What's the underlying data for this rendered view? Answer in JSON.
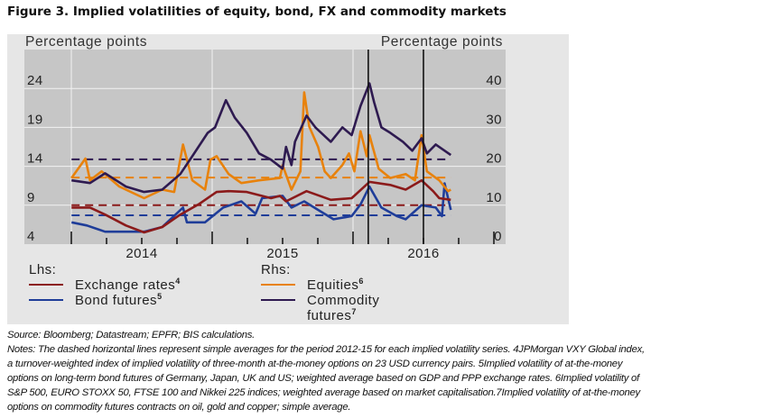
{
  "title": "Figure 3. Implied volatilities of equity, bond, FX and commodity markets",
  "chart_data": {
    "type": "line",
    "lhs_label": "Percentage points",
    "rhs_label": "Percentage points",
    "lhs_ticks": [
      24,
      19,
      14,
      9,
      4
    ],
    "rhs_ticks": [
      40,
      30,
      20,
      10,
      0
    ],
    "lhs_range": [
      4,
      29
    ],
    "rhs_range": [
      0,
      50
    ],
    "x_tick_labels": [
      "2014",
      "2015",
      "2016"
    ],
    "x_range": [
      "2013-07-01",
      "2016-05-15"
    ],
    "grid": true,
    "event_lines": [
      "2015-08-11",
      "2016-01-01"
    ],
    "legend": {
      "lhs_title": "Lhs:",
      "rhs_title": "Rhs:",
      "placement": "bottom"
    },
    "series": [
      {
        "name": "Exchange rates",
        "note": "4",
        "axis": "lhs",
        "color": "#8b1a1a",
        "average": 9.0,
        "points": [
          [
            "2013-07-03",
            8.7
          ],
          [
            "2013-08-20",
            8.7
          ],
          [
            "2013-09-28",
            7.8
          ],
          [
            "2013-11-21",
            6.4
          ],
          [
            "2014-01-07",
            5.5
          ],
          [
            "2014-02-23",
            6.2
          ],
          [
            "2014-04-11",
            7.8
          ],
          [
            "2014-05-28",
            9.1
          ],
          [
            "2014-07-14",
            10.7
          ],
          [
            "2014-08-14",
            10.8
          ],
          [
            "2014-09-30",
            10.7
          ],
          [
            "2014-12-02",
            9.9
          ],
          [
            "2014-12-25",
            10.2
          ],
          [
            "2015-01-10",
            9.5
          ],
          [
            "2015-03-04",
            10.8
          ],
          [
            "2015-05-06",
            9.7
          ],
          [
            "2015-06-29",
            9.9
          ],
          [
            "2015-08-14",
            12.0
          ],
          [
            "2015-10-07",
            11.6
          ],
          [
            "2015-11-16",
            11.0
          ],
          [
            "2015-12-27",
            12.2
          ],
          [
            "2016-01-26",
            10.8
          ],
          [
            "2016-02-11",
            9.9
          ],
          [
            "2016-03-12",
            9.7
          ]
        ]
      },
      {
        "name": "Bond futures",
        "note": "5",
        "axis": "lhs",
        "color": "#1f3d99",
        "average": 7.7,
        "points": [
          [
            "2013-07-03",
            6.8
          ],
          [
            "2013-08-12",
            6.4
          ],
          [
            "2013-09-28",
            5.6
          ],
          [
            "2013-11-21",
            5.6
          ],
          [
            "2014-01-07",
            5.6
          ],
          [
            "2014-02-23",
            6.2
          ],
          [
            "2014-04-18",
            8.7
          ],
          [
            "2014-04-28",
            6.8
          ],
          [
            "2014-06-14",
            6.8
          ],
          [
            "2014-07-31",
            8.7
          ],
          [
            "2014-09-16",
            9.5
          ],
          [
            "2014-10-23",
            7.9
          ],
          [
            "2014-11-09",
            9.9
          ],
          [
            "2015-01-01",
            10.2
          ],
          [
            "2015-01-24",
            8.7
          ],
          [
            "2015-02-26",
            9.5
          ],
          [
            "2015-04-03",
            8.4
          ],
          [
            "2015-05-13",
            7.2
          ],
          [
            "2015-06-29",
            7.6
          ],
          [
            "2015-07-22",
            9.1
          ],
          [
            "2015-08-14",
            11.4
          ],
          [
            "2015-09-14",
            8.7
          ],
          [
            "2015-10-24",
            7.6
          ],
          [
            "2015-11-16",
            7.2
          ],
          [
            "2015-12-27",
            9.0
          ],
          [
            "2016-02-02",
            8.7
          ],
          [
            "2016-02-18",
            7.6
          ],
          [
            "2016-02-25",
            11.8
          ],
          [
            "2016-03-12",
            8.4
          ]
        ]
      },
      {
        "name": "Equities",
        "note": "6",
        "axis": "rhs",
        "color": "#e8820c",
        "average": 17.1,
        "points": [
          [
            "2013-07-03",
            17.0
          ],
          [
            "2013-08-08",
            22.0
          ],
          [
            "2013-08-20",
            16.4
          ],
          [
            "2013-09-19",
            18.7
          ],
          [
            "2013-11-04",
            14.8
          ],
          [
            "2014-01-07",
            11.8
          ],
          [
            "2014-02-23",
            14.0
          ],
          [
            "2014-03-26",
            13.4
          ],
          [
            "2014-04-18",
            25.6
          ],
          [
            "2014-05-12",
            16.4
          ],
          [
            "2014-06-14",
            14.0
          ],
          [
            "2014-06-28",
            21.7
          ],
          [
            "2014-07-14",
            22.6
          ],
          [
            "2014-08-14",
            18.0
          ],
          [
            "2014-09-16",
            15.7
          ],
          [
            "2014-11-01",
            16.4
          ],
          [
            "2014-12-25",
            17.0
          ],
          [
            "2015-01-01",
            20.3
          ],
          [
            "2015-01-24",
            14.0
          ],
          [
            "2015-02-16",
            18.7
          ],
          [
            "2015-02-26",
            39.0
          ],
          [
            "2015-03-11",
            30.2
          ],
          [
            "2015-04-03",
            25.0
          ],
          [
            "2015-04-20",
            18.7
          ],
          [
            "2015-05-06",
            17.0
          ],
          [
            "2015-06-05",
            20.3
          ],
          [
            "2015-06-22",
            23.3
          ],
          [
            "2015-07-06",
            18.7
          ],
          [
            "2015-07-22",
            29.0
          ],
          [
            "2015-08-07",
            22.6
          ],
          [
            "2015-08-14",
            28.0
          ],
          [
            "2015-09-07",
            19.4
          ],
          [
            "2015-10-07",
            17.0
          ],
          [
            "2015-11-16",
            18.0
          ],
          [
            "2015-12-10",
            16.4
          ],
          [
            "2015-12-27",
            28.0
          ],
          [
            "2016-01-10",
            18.7
          ],
          [
            "2016-02-11",
            16.4
          ],
          [
            "2016-03-05",
            13.6
          ],
          [
            "2016-03-12",
            14.0
          ]
        ]
      },
      {
        "name": "Commodity futures",
        "note": "7",
        "axis": "rhs",
        "color": "#2e1a50",
        "average": 21.8,
        "points": [
          [
            "2013-07-03",
            16.4
          ],
          [
            "2013-08-20",
            15.7
          ],
          [
            "2013-09-28",
            18.2
          ],
          [
            "2013-11-21",
            14.8
          ],
          [
            "2014-01-07",
            13.4
          ],
          [
            "2014-02-23",
            14.0
          ],
          [
            "2014-04-11",
            18.0
          ],
          [
            "2014-05-12",
            22.6
          ],
          [
            "2014-06-21",
            28.6
          ],
          [
            "2014-07-10",
            30.0
          ],
          [
            "2014-08-07",
            37.0
          ],
          [
            "2014-08-30",
            32.5
          ],
          [
            "2014-09-30",
            28.6
          ],
          [
            "2014-11-01",
            23.3
          ],
          [
            "2014-12-02",
            21.7
          ],
          [
            "2015-01-01",
            19.4
          ],
          [
            "2015-01-10",
            25.0
          ],
          [
            "2015-01-24",
            20.3
          ],
          [
            "2015-02-02",
            26.3
          ],
          [
            "2015-03-04",
            33.0
          ],
          [
            "2015-03-27",
            30.0
          ],
          [
            "2015-05-06",
            26.3
          ],
          [
            "2015-06-05",
            30.0
          ],
          [
            "2015-06-29",
            28.0
          ],
          [
            "2015-07-22",
            35.5
          ],
          [
            "2015-08-14",
            41.3
          ],
          [
            "2015-08-26",
            36.5
          ],
          [
            "2015-09-14",
            30.0
          ],
          [
            "2015-10-07",
            28.6
          ],
          [
            "2015-11-09",
            26.3
          ],
          [
            "2015-12-03",
            24.0
          ],
          [
            "2015-12-27",
            27.2
          ],
          [
            "2016-01-10",
            23.3
          ],
          [
            "2016-02-02",
            25.6
          ],
          [
            "2016-03-12",
            22.9
          ]
        ]
      }
    ]
  },
  "source": "Source: Bloomberg; Datastream; EPFR; BIS calculations.",
  "notes": [
    "Notes: The dashed horizontal lines represent simple averages for the period 2012-15 for each implied volatility series. 4JPMorgan VXY Global index,",
    "a turnover-weighted index of implied volatility of three-month at-the-money options on 23 USD currency pairs. 5Implied volatility of at-the-money",
    "options on long-term bond futures of Germany, Japan, UK and US; weighted average based on GDP and PPP exchange rates. 6Implied volatility of",
    "S&P 500, EURO STOXX 50, FTSE 100 and Nikkei 225 indices; weighted average based on market capitalisation.7Implied volatility of at-the-money",
    "options on commodity futures contracts on oil, gold and copper; simple average."
  ]
}
